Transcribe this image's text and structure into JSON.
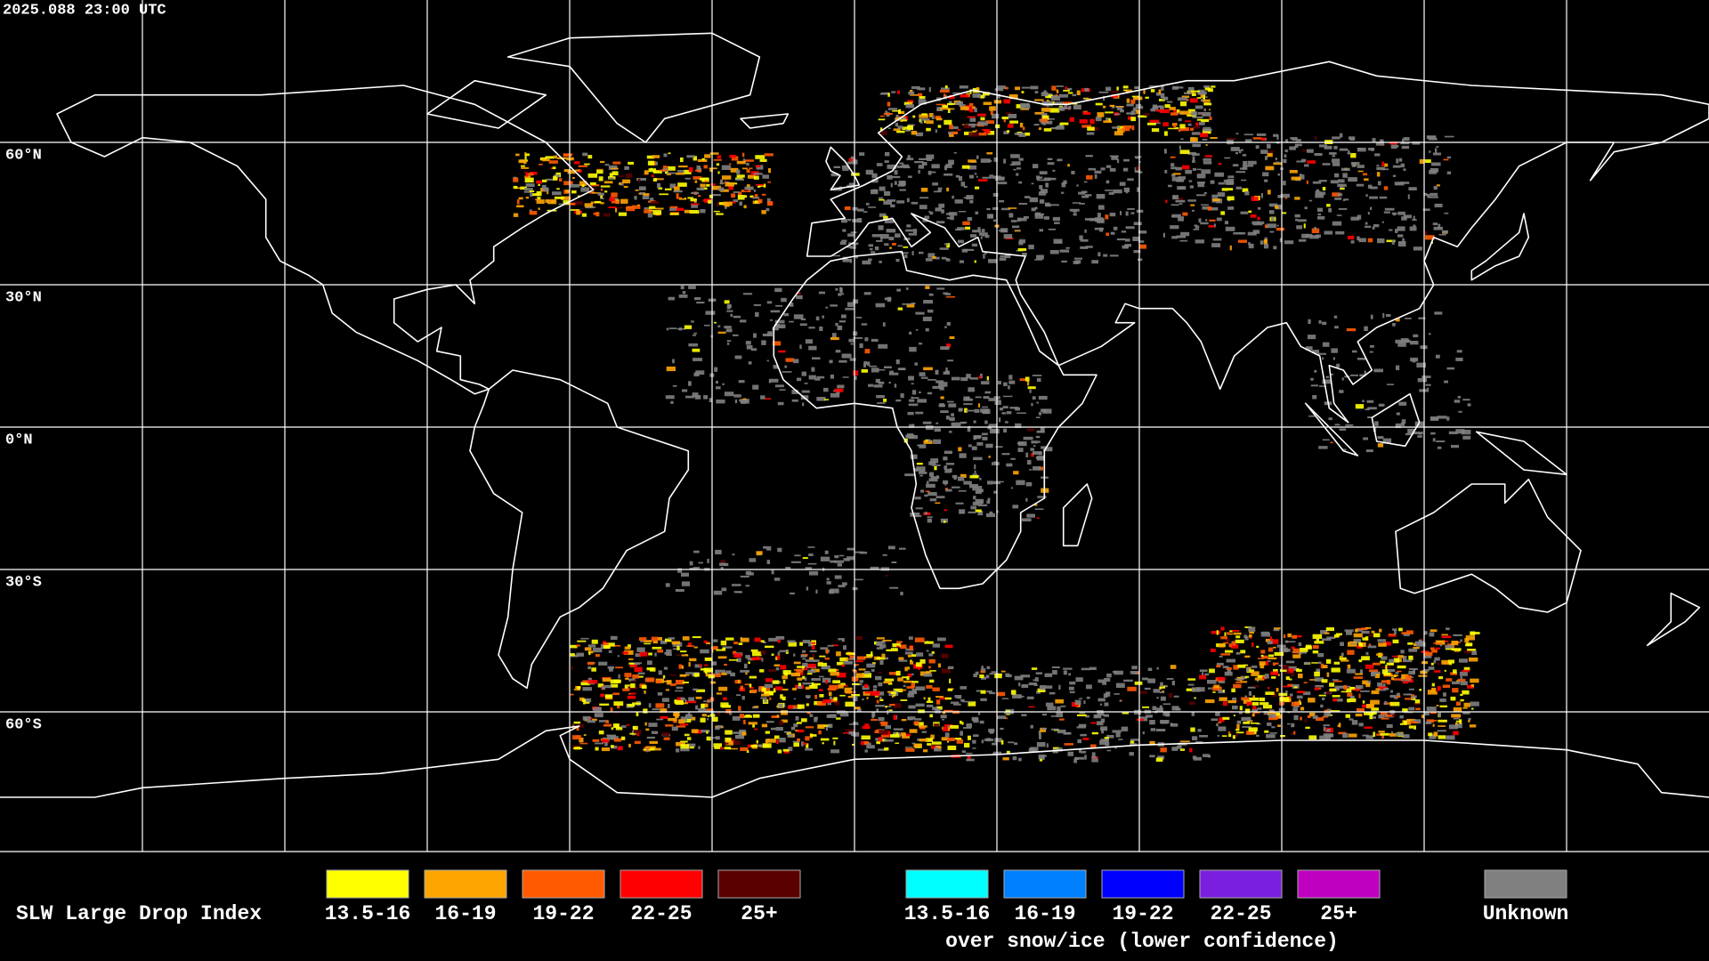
{
  "header": {
    "timestamp": "2025.088 23:00 UTC"
  },
  "map": {
    "latitude_labels": [
      "60°N",
      "30°N",
      "0°N",
      "30°S",
      "60°S"
    ]
  },
  "legend": {
    "title": "SLW Large Drop Index",
    "items": [
      {
        "label": "13.5-16",
        "color": "#ffff00"
      },
      {
        "label": "16-19",
        "color": "#ffa500"
      },
      {
        "label": "19-22",
        "color": "#ff5a00"
      },
      {
        "label": "22-25",
        "color": "#ff0000"
      },
      {
        "label": "25+",
        "color": "#5a0000"
      }
    ],
    "snow_items": [
      {
        "label": "13.5-16",
        "color": "#00ffff"
      },
      {
        "label": "16-19",
        "color": "#0080ff"
      },
      {
        "label": "19-22",
        "color": "#0000ff"
      },
      {
        "label": "22-25",
        "color": "#7a1fe0"
      },
      {
        "label": "25+",
        "color": "#c000c0"
      }
    ],
    "snow_caption": "over snow/ice (lower confidence)",
    "unknown": {
      "label": "Unknown",
      "color": "#808080"
    }
  }
}
